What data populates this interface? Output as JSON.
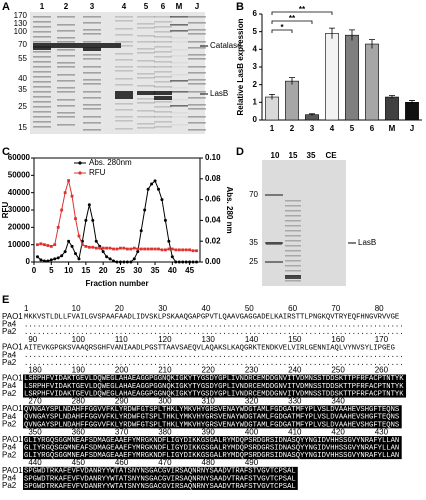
{
  "panel_labels": [
    "A",
    "B",
    "C",
    "D",
    "E"
  ],
  "gel_A": {
    "lanes": [
      "1",
      "2",
      "3",
      "4",
      "5",
      "6",
      "M",
      "J"
    ],
    "markers": [
      "170",
      "130",
      "100",
      "70",
      "55",
      "40",
      "35",
      "25",
      "15"
    ],
    "bands": [
      "Catalase",
      "LasB"
    ]
  },
  "gel_D": {
    "lanes": [
      "10",
      "15",
      "35",
      "CE"
    ],
    "markers": [
      "70",
      "35",
      "25"
    ],
    "bands": [
      "LasB"
    ]
  },
  "chart_data": [
    {
      "type": "bar",
      "y_label": "Relative LasB expression",
      "categories": [
        "1",
        "2",
        "3",
        "4",
        "5",
        "6",
        "M",
        "J"
      ],
      "values": [
        1.3,
        2.2,
        0.3,
        4.9,
        4.8,
        4.3,
        1.3,
        1.0
      ],
      "errors": [
        0.15,
        0.2,
        0.05,
        0.3,
        0.3,
        0.25,
        0.08,
        0.1
      ],
      "colors": [
        "#d9d9d9",
        "#a6a6a6",
        "#595959",
        "#f2f2f2",
        "#7f7f7f",
        "#a6a6a6",
        "#404040",
        "#111111"
      ],
      "ylim": [
        0,
        6
      ],
      "yticks": [
        0,
        1,
        2,
        3,
        4,
        5,
        6
      ],
      "annotations": [
        {
          "text": "*",
          "from": "1",
          "to": "2"
        },
        {
          "text": "**",
          "from": "1",
          "to": "3"
        },
        {
          "text": "**",
          "from": "1",
          "to": "4"
        }
      ]
    },
    {
      "type": "line",
      "x_label": "Fraction number",
      "y_label": "RFU",
      "y2_label": "Abs. 280 nm",
      "x": [
        1,
        2,
        3,
        4,
        5,
        6,
        7,
        8,
        9,
        10,
        11,
        12,
        13,
        14,
        15,
        16,
        17,
        18,
        19,
        20,
        21,
        22,
        23,
        24,
        25,
        26,
        27,
        28,
        29,
        30,
        31,
        32,
        33,
        34,
        35,
        36,
        37,
        38,
        39,
        40,
        41,
        42,
        43,
        44,
        45,
        46,
        47
      ],
      "xlim": [
        0,
        48
      ],
      "xticks": [
        0,
        5,
        10,
        15,
        20,
        25,
        30,
        35,
        40,
        45
      ],
      "ylim": [
        0,
        60000
      ],
      "yticks": [
        0,
        10000,
        20000,
        30000,
        40000,
        50000,
        60000
      ],
      "y2lim": [
        0,
        0.1
      ],
      "y2ticks": [
        {
          "value": 0,
          "label": "0.00"
        },
        {
          "value": 0.02,
          "label": "0.02"
        },
        {
          "value": 0.04,
          "label": "0.04"
        },
        {
          "value": 0.06,
          "label": "0.06"
        },
        {
          "value": 0.08,
          "label": "0.08"
        },
        {
          "value": 0.1,
          "label": "0.10"
        }
      ],
      "legend": "upper left",
      "series": [
        {
          "name": "Abs. 280nm",
          "color": "#000000",
          "axis": "y2",
          "marker": "circle",
          "values": [
            0.005,
            0.002,
            0.001,
            0.001,
            0.002,
            0.003,
            0.004,
            0.006,
            0.01,
            0.02,
            0.015,
            0.008,
            0.003,
            0.02,
            0.04,
            0.055,
            0.04,
            0.02,
            0.015,
            0.01,
            0.005,
            0.003,
            0.001,
            0,
            0,
            0,
            0,
            0,
            0.003,
            0.01,
            0.03,
            0.05,
            0.07,
            0.075,
            0.078,
            0.07,
            0.06,
            0.04,
            0.02,
            0.005,
            0,
            0,
            0,
            0,
            0,
            0,
            0
          ]
        },
        {
          "name": "RFU",
          "color": "#e03030",
          "axis": "y",
          "marker": "square",
          "values": [
            10000,
            10500,
            10000,
            9500,
            9000,
            10000,
            20000,
            30000,
            40000,
            47000,
            38000,
            25000,
            15000,
            10000,
            9000,
            8500,
            8500,
            8000,
            8000,
            8000,
            8000,
            8000,
            7500,
            7500,
            8000,
            8000,
            7500,
            7500,
            8000,
            7500,
            7500,
            7500,
            7500,
            7500,
            7500,
            7500,
            7000,
            7000,
            7500,
            7500,
            7000,
            7000,
            7000,
            7000,
            7000,
            6500,
            6500
          ]
        }
      ]
    }
  ],
  "alignment": {
    "names": [
      "PAO1",
      "Pa4",
      "Pa2"
    ],
    "blocks": [
      {
        "ruler": [
          "1",
          "10",
          "20",
          "30",
          "40",
          "50",
          "60",
          "70",
          "80"
        ],
        "rows": [
          "MKKVSTLDLLFVAILGVSPAAFAADLIDVSKLPSKAAQGAPGPVTLQAAVGAGGADELKAIRSTTLPNGKQVTRYEQFHNGVRVVGE",
          "........................................................................................",
          "........................................................................................"
        ]
      },
      {
        "ruler": [
          "90",
          "100",
          "110",
          "120",
          "130",
          "140",
          "150",
          "160",
          "170"
        ],
        "rows": [
          "AITEVKGPGKSVAAQRSGHFVANIAADLPGSTTAAVSAEQVLAQAKSLKAQGRKTENDKVELVIRLGENNIAQLVYNVSYLIPGEG",
          "........................................................................................",
          "........................................................................................"
        ]
      },
      {
        "ruler": [
          "180",
          "190",
          "200",
          "210",
          "220",
          "230",
          "240",
          "250",
          "260"
        ],
        "rows": [
          "LSRPHFVIDAKTGEVLDQWEGLAHAEAGGPGGNQKIGKYTYGSDYGPLIVNDRCEMDDGNVITVDMNSSTDDSKTTPFRFACPTNTYK",
          "LSRPHFVIDAKTGEVLDQWEGLAHAEAGGPGGNQKIGKYTYGSDYGPLIVNDRCEMDDGNVITVDMNSSTDDSKTTPFRFACPTNTYK",
          "LSRPHFVIDAKTGEVLDQWEGLAHAEAGGPGGNQKIGKYTYGSDYGPLIVNDRCEMDDGNVITVDMNSSTDDSKTTPFRFACPTNTYK"
        ]
      },
      {
        "ruler": [
          "270",
          "280",
          "290",
          "300",
          "310",
          "320",
          "330",
          "340"
        ],
        "rows": [
          "QVNGAYSPLNDAHFFGGVVFKLYRDWFGTSPLTHKLYMKVHYGRSVENAYWDGTAMLFGDGATMFYPLVSLDVAAHEVSHGFTEQNS",
          "QVNGAYSPLNDAHFFGGVVFKLYRDWFGTSPLTHKLYMKVHYGRSVENAYWDGTAMLFGDGATMFYPLVSLDVAAHEVSHGFTEQNS",
          "QVNGAYSPLNDAHFFGGVVFKLYRDWFGTSPLTHKLYMKVHYGRSVENAYWDGTAMLFGDGATMFYPLVSLDVAAHEVSHGFTEQNS"
        ]
      },
      {
        "ruler": [
          "350",
          "360",
          "370",
          "380",
          "390",
          "400",
          "410",
          "420",
          "430"
        ],
        "rows": [
          "GLIYRGQSGGMNEAFSDMAGEAAEFYMRGKNDFLIGYDIKKGSGALRYMDQPSRDGRSIDNASQYYNGIDVHHSSGVYNRAFYLLAN",
          "GLIYRGQSGGMNEAFSDMAGEAAEFYMRGKNDFLIGYDIKKGSGALRYMDQPSRDGRSIDNASQYYNGIDVHHSSGVYNRAFYLLAN",
          "GLIYRGQSGGMNEAFSDMAGEAAEFYMRGKNDFLIGYDIKKGSGALRYMDQPSRDGRSIDNASQYYNGIDVHHSSGVYNRAFYLLAN"
        ]
      },
      {
        "ruler": [
          "440",
          "450",
          "460",
          "470",
          "480",
          "490"
        ],
        "rows": [
          "SPGWDTRKAFEVFVDANRYYWTATSNYNSGACGVIRSAQNRNYSAADVTRAFSTVGVTCPSAL",
          "SPGWDTRKAFEVFVDANRYYWTATSNYNSGACGVIRSAQNRNYSAADVTRAFSTVGVTCPSAL",
          "SPGWDTRKAFEVFVDANRYYWTATSNYNSGACGVIRSAQNRNYSAADVTRAFSTVGVTCPSAL"
        ]
      }
    ]
  }
}
